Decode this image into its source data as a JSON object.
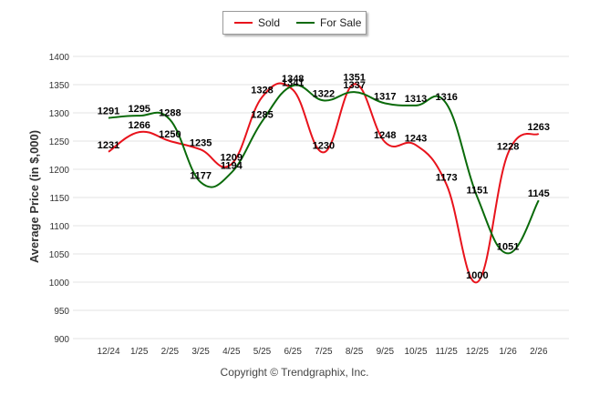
{
  "chart_data": {
    "type": "line",
    "title": "",
    "xlabel": "",
    "ylabel": "Average Price (in $,000)",
    "ylim": [
      900,
      1400
    ],
    "yticks": [
      "900",
      "950",
      "1000",
      "1050",
      "1100",
      "1150",
      "1200",
      "1250",
      "1300",
      "1350",
      "1400"
    ],
    "categories": [
      "12/24",
      "1/25",
      "2/25",
      "3/25",
      "4/25",
      "5/25",
      "6/25",
      "7/25",
      "8/25",
      "9/25",
      "10/25",
      "11/25",
      "12/25",
      "1/26",
      "2/26"
    ],
    "legend_position": "top-center",
    "grid": "horizontal",
    "series": [
      {
        "name": "Sold",
        "color": "#e8131c",
        "values": [
          1231,
          1266,
          1250,
          1235,
          1209,
          1328,
          1341,
          1230,
          1351,
          1248,
          1243,
          1173,
          1000,
          1228,
          1263
        ]
      },
      {
        "name": "For Sale",
        "color": "#0a6a0a",
        "values": [
          1291,
          1295,
          1288,
          1177,
          1194,
          1285,
          1348,
          1322,
          1337,
          1317,
          1313,
          1316,
          1151,
          1051,
          1145
        ]
      }
    ]
  },
  "copyright": "Copyright © Trendgraphix, Inc."
}
